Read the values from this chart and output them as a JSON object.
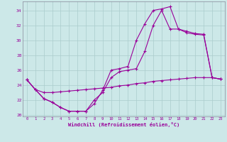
{
  "xlabel": "Windchill (Refroidissement éolien,°C)",
  "bg_color": "#cce8e8",
  "line_color": "#990099",
  "grid_color": "#aacccc",
  "hours": [
    0,
    1,
    2,
    3,
    4,
    5,
    6,
    7,
    8,
    9,
    10,
    11,
    12,
    13,
    14,
    15,
    16,
    17,
    18,
    19,
    20,
    21,
    22,
    23
  ],
  "line1": [
    24.7,
    23.4,
    22.2,
    21.7,
    21.0,
    20.5,
    20.5,
    20.5,
    21.5,
    23.3,
    26.0,
    26.2,
    26.5,
    30.0,
    32.2,
    34.0,
    34.2,
    34.5,
    31.5,
    31.0,
    30.8,
    30.7,
    25.0,
    24.8
  ],
  "line2": [
    24.7,
    23.4,
    22.2,
    21.7,
    21.0,
    20.5,
    20.5,
    20.5,
    22.0,
    23.0,
    25.0,
    25.8,
    26.0,
    26.2,
    28.5,
    32.0,
    34.0,
    31.5,
    31.5,
    31.2,
    30.9,
    30.8,
    25.0,
    24.8
  ],
  "line3": [
    24.7,
    23.4,
    23.0,
    23.0,
    23.1,
    23.2,
    23.3,
    23.4,
    23.5,
    23.6,
    23.7,
    23.9,
    24.0,
    24.2,
    24.3,
    24.5,
    24.6,
    24.7,
    24.8,
    24.9,
    25.0,
    25.0,
    25.0,
    24.8
  ],
  "ylim": [
    20,
    35
  ],
  "yticks": [
    20,
    22,
    24,
    26,
    28,
    30,
    32,
    34
  ]
}
